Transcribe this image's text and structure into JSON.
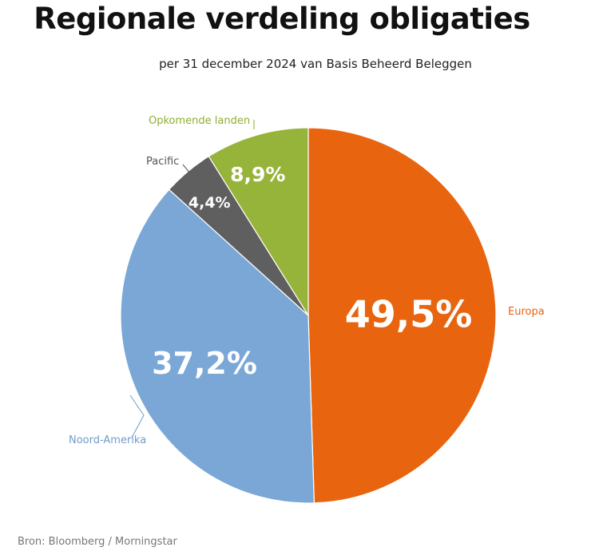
{
  "chart_data": {
    "type": "pie",
    "title": "Regionale verdeling obligaties",
    "subtitle": "per 31 december 2024 van Basis Beheerd Beleggen",
    "slices": [
      {
        "name": "Europa",
        "value": 49.5,
        "label": "49,5%",
        "color": "#E8640E"
      },
      {
        "name": "Noord-Amerika",
        "value": 37.2,
        "label": "37,2%",
        "color": "#7BA7D6"
      },
      {
        "name": "Pacific",
        "value": 4.4,
        "label": "4,4%",
        "color": "#5F5F5F"
      },
      {
        "name": "Opkomende landen",
        "value": 8.9,
        "label": "8,9%",
        "color": "#97B43A"
      }
    ],
    "start_angle": "12 o'clock",
    "direction": "clockwise",
    "source": "Bron: Bloomberg / Morningstar"
  }
}
